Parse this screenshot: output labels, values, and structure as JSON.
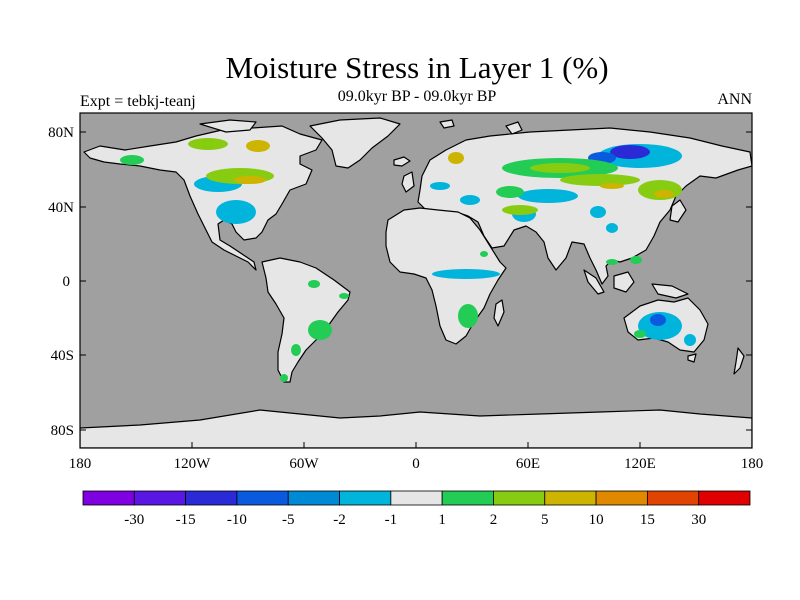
{
  "title": "Moisture Stress in Layer 1 (%)",
  "subtitle": "09.0kyr BP - 09.0kyr BP",
  "left_label": "Expt = tebkj-teanj",
  "right_label": "ANN",
  "map": {
    "projection": "cylindrical equidistant",
    "ocean_color": "#a0a0a0",
    "land_color": "#e6e6e6",
    "lat_ticks": [
      "80N",
      "40N",
      "0",
      "40S",
      "80S"
    ],
    "lon_ticks": [
      "180",
      "120W",
      "60W",
      "0",
      "60E",
      "120E",
      "180"
    ]
  },
  "colorbar": {
    "colors": [
      "#7f00e0",
      "#5a17e3",
      "#2a2ad6",
      "#0a5ae0",
      "#008ad6",
      "#00b4dc",
      "#e6e6e6",
      "#22cc55",
      "#88cc11",
      "#ccb400",
      "#e08800",
      "#e04400",
      "#e00000"
    ],
    "labels": [
      "-30",
      "-15",
      "-10",
      "-5",
      "-2",
      "-1",
      "1",
      "2",
      "5",
      "10",
      "15",
      "30"
    ]
  }
}
